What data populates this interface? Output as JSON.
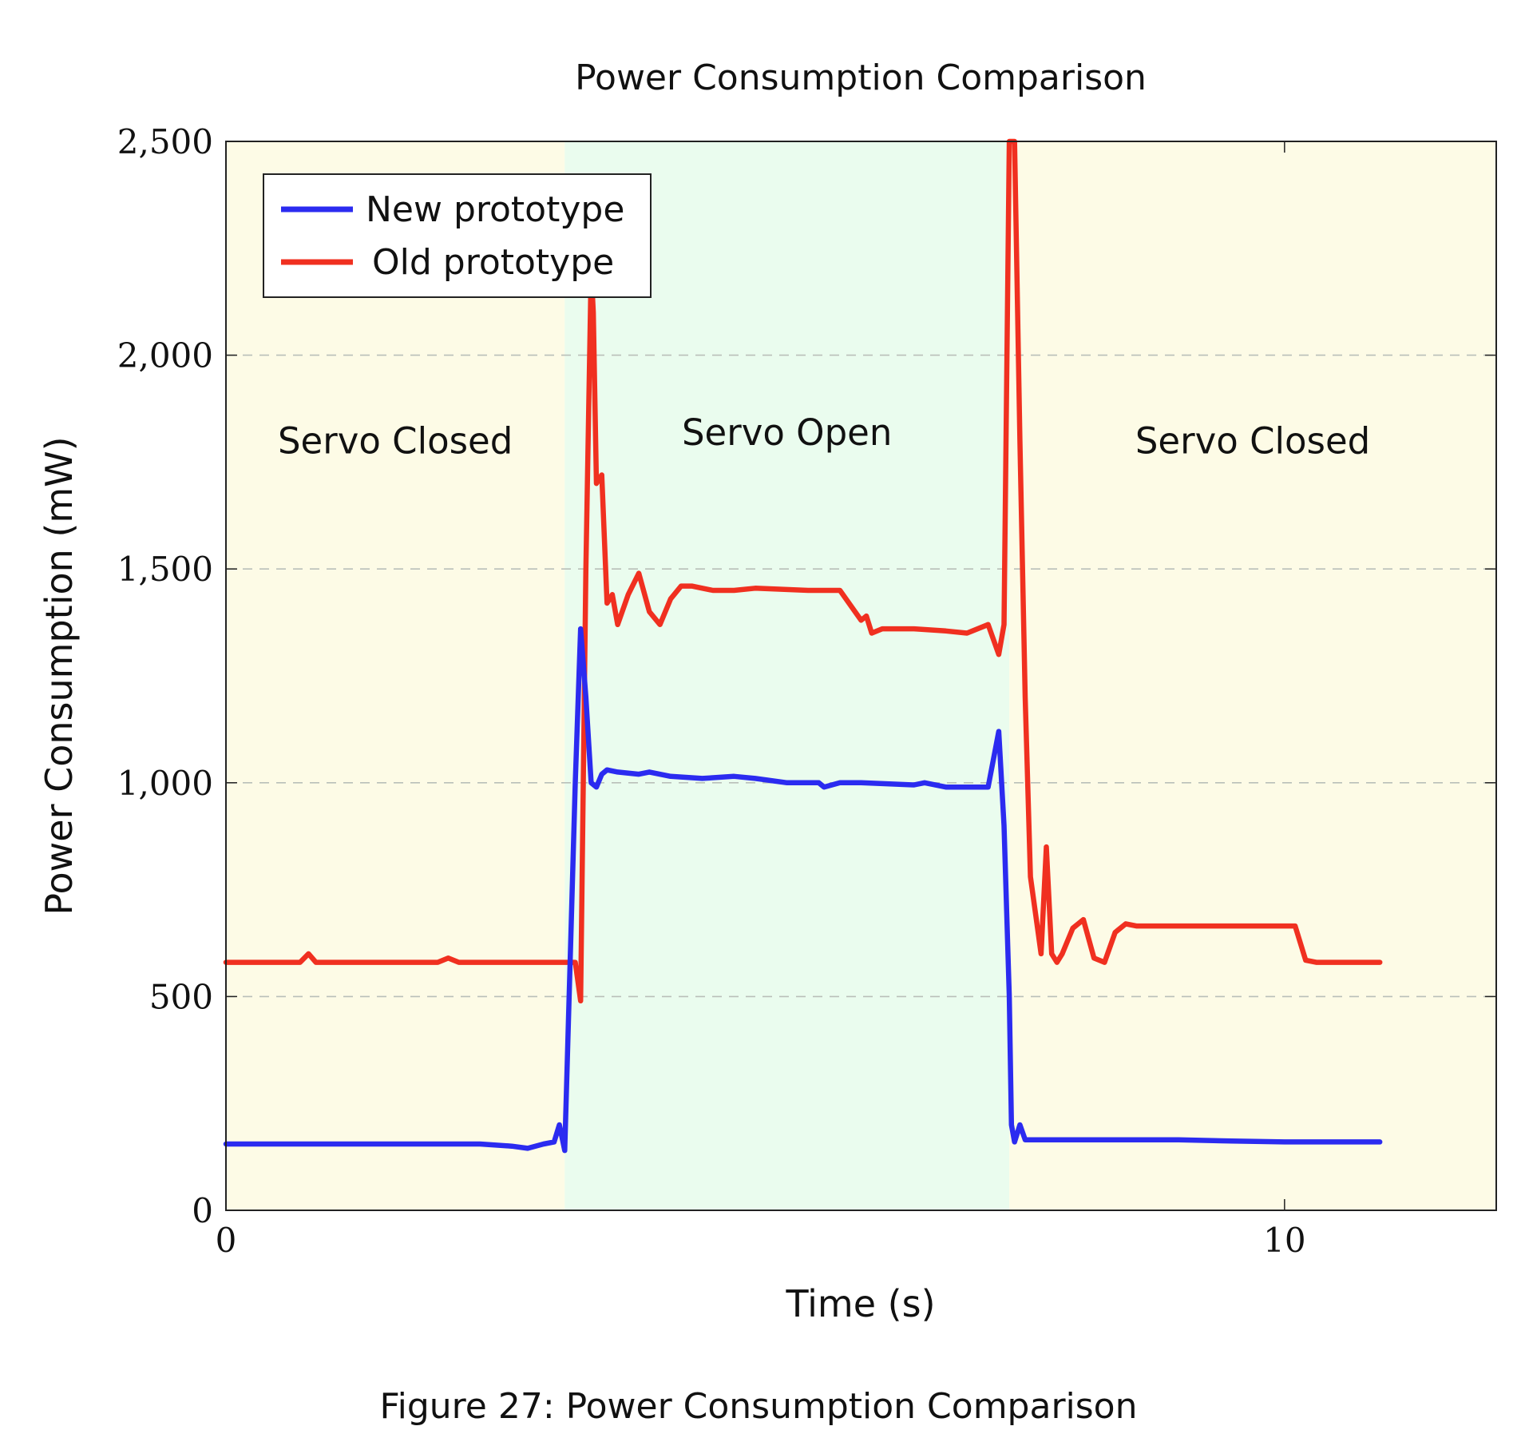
{
  "figure": {
    "caption": "Figure 27: Power Consumption Comparison"
  },
  "chart_data": {
    "type": "line",
    "title": "Power Consumption Comparison",
    "xlabel": "Time (s)",
    "ylabel": "Power Consumption (mW)",
    "xlim": [
      0,
      12
    ],
    "ylim": [
      0,
      2500
    ],
    "xticks": [
      0,
      10
    ],
    "xtick_labels": [
      "0",
      "10"
    ],
    "yticks": [
      0,
      500,
      1000,
      1500,
      2000,
      2500
    ],
    "ytick_labels": [
      "0",
      "500",
      "1,000",
      "1,500",
      "2,000",
      "2,500"
    ],
    "grid": "horizontal dashed",
    "legend_position": "top-left",
    "regions": [
      {
        "label": "Servo Closed",
        "x_start": 0,
        "x_end": 3.2,
        "color": "#fdfbe6",
        "label_x": 1.6,
        "label_y": 1770
      },
      {
        "label": "Servo Open",
        "x_start": 3.2,
        "x_end": 7.4,
        "color": "#eafcee",
        "label_x": 5.3,
        "label_y": 1790
      },
      {
        "label": "Servo Closed",
        "x_start": 7.4,
        "x_end": 12,
        "color": "#fdfbe6",
        "label_x": 9.7,
        "label_y": 1770
      }
    ],
    "series": [
      {
        "name": "New prototype",
        "color": "#2b2bf0",
        "x": [
          0,
          2.4,
          2.7,
          2.85,
          3.0,
          3.1,
          3.15,
          3.2,
          3.3,
          3.35,
          3.4,
          3.45,
          3.5,
          3.55,
          3.6,
          3.7,
          3.9,
          4.0,
          4.2,
          4.5,
          4.8,
          5.0,
          5.3,
          5.6,
          5.65,
          5.8,
          6.0,
          6.5,
          6.6,
          6.8,
          7.1,
          7.2,
          7.3,
          7.35,
          7.4,
          7.42,
          7.45,
          7.5,
          7.55,
          7.6,
          8.0,
          8.5,
          9.0,
          9.5,
          10.0,
          10.5,
          10.9
        ],
        "y": [
          155,
          155,
          150,
          145,
          155,
          160,
          200,
          140,
          1000,
          1360,
          1200,
          1000,
          990,
          1020,
          1030,
          1025,
          1020,
          1025,
          1015,
          1010,
          1015,
          1010,
          1000,
          1000,
          990,
          1000,
          1000,
          995,
          1000,
          990,
          990,
          990,
          1120,
          900,
          500,
          200,
          160,
          200,
          165,
          165,
          165,
          165,
          165,
          162,
          160,
          160,
          160
        ]
      },
      {
        "name": "Old prototype",
        "color": "#f03020",
        "x": [
          0,
          0.7,
          0.78,
          0.85,
          1.0,
          2.0,
          2.1,
          2.2,
          3.0,
          3.3,
          3.35,
          3.4,
          3.45,
          3.47,
          3.5,
          3.55,
          3.6,
          3.65,
          3.7,
          3.8,
          3.9,
          4.0,
          4.1,
          4.2,
          4.3,
          4.4,
          4.5,
          4.6,
          4.8,
          5.0,
          5.5,
          5.8,
          6.0,
          6.05,
          6.1,
          6.2,
          6.5,
          6.8,
          7.0,
          7.2,
          7.3,
          7.35,
          7.4,
          7.45,
          7.5,
          7.55,
          7.6,
          7.7,
          7.75,
          7.8,
          7.85,
          7.9,
          8.0,
          8.1,
          8.2,
          8.3,
          8.4,
          8.5,
          8.6,
          8.7,
          8.8,
          9.0,
          9.5,
          10.0,
          10.1,
          10.2,
          10.3,
          10.5,
          10.9
        ],
        "y": [
          580,
          580,
          600,
          580,
          580,
          580,
          590,
          580,
          580,
          580,
          490,
          1500,
          2200,
          2100,
          1700,
          1720,
          1420,
          1440,
          1370,
          1440,
          1490,
          1400,
          1370,
          1430,
          1460,
          1460,
          1455,
          1450,
          1450,
          1455,
          1450,
          1450,
          1380,
          1390,
          1350,
          1360,
          1360,
          1355,
          1350,
          1370,
          1300,
          1370,
          2500,
          2500,
          1800,
          1200,
          780,
          600,
          850,
          600,
          580,
          600,
          660,
          680,
          590,
          580,
          650,
          670,
          665,
          665,
          665,
          665,
          665,
          665,
          665,
          585,
          580,
          580,
          580
        ]
      }
    ]
  }
}
